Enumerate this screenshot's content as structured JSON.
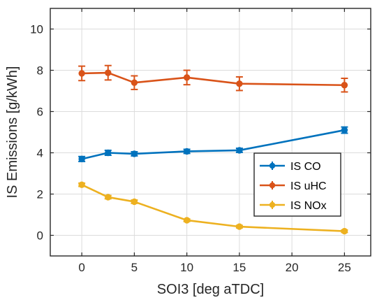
{
  "chart_data": {
    "type": "line",
    "xlabel": "SOI3 [deg aTDC]",
    "ylabel": "IS Emissions [g/kWh]",
    "xlim": [
      -3,
      27.5
    ],
    "ylim": [
      -1,
      11
    ],
    "xticks": [
      0,
      5,
      10,
      15,
      20,
      25
    ],
    "yticks": [
      0,
      2,
      4,
      6,
      8,
      10
    ],
    "grid": true,
    "legend_position": "lower-right",
    "x": [
      0,
      2.5,
      5,
      10,
      15,
      25
    ],
    "series": [
      {
        "name": "IS CO",
        "color": "#0072BD",
        "values": [
          3.7,
          4.0,
          3.95,
          4.07,
          4.12,
          5.1
        ],
        "errors": [
          0.12,
          0.12,
          0.1,
          0.1,
          0.1,
          0.15
        ]
      },
      {
        "name": "IS uHC",
        "color": "#D95319",
        "values": [
          7.85,
          7.88,
          7.4,
          7.65,
          7.35,
          7.28
        ],
        "errors": [
          0.35,
          0.35,
          0.33,
          0.35,
          0.33,
          0.33
        ]
      },
      {
        "name": "IS NOx",
        "color": "#EDB120",
        "values": [
          2.45,
          1.85,
          1.63,
          0.73,
          0.42,
          0.2
        ],
        "errors": [
          0.08,
          0.08,
          0.08,
          0.06,
          0.06,
          0.06
        ]
      }
    ]
  }
}
